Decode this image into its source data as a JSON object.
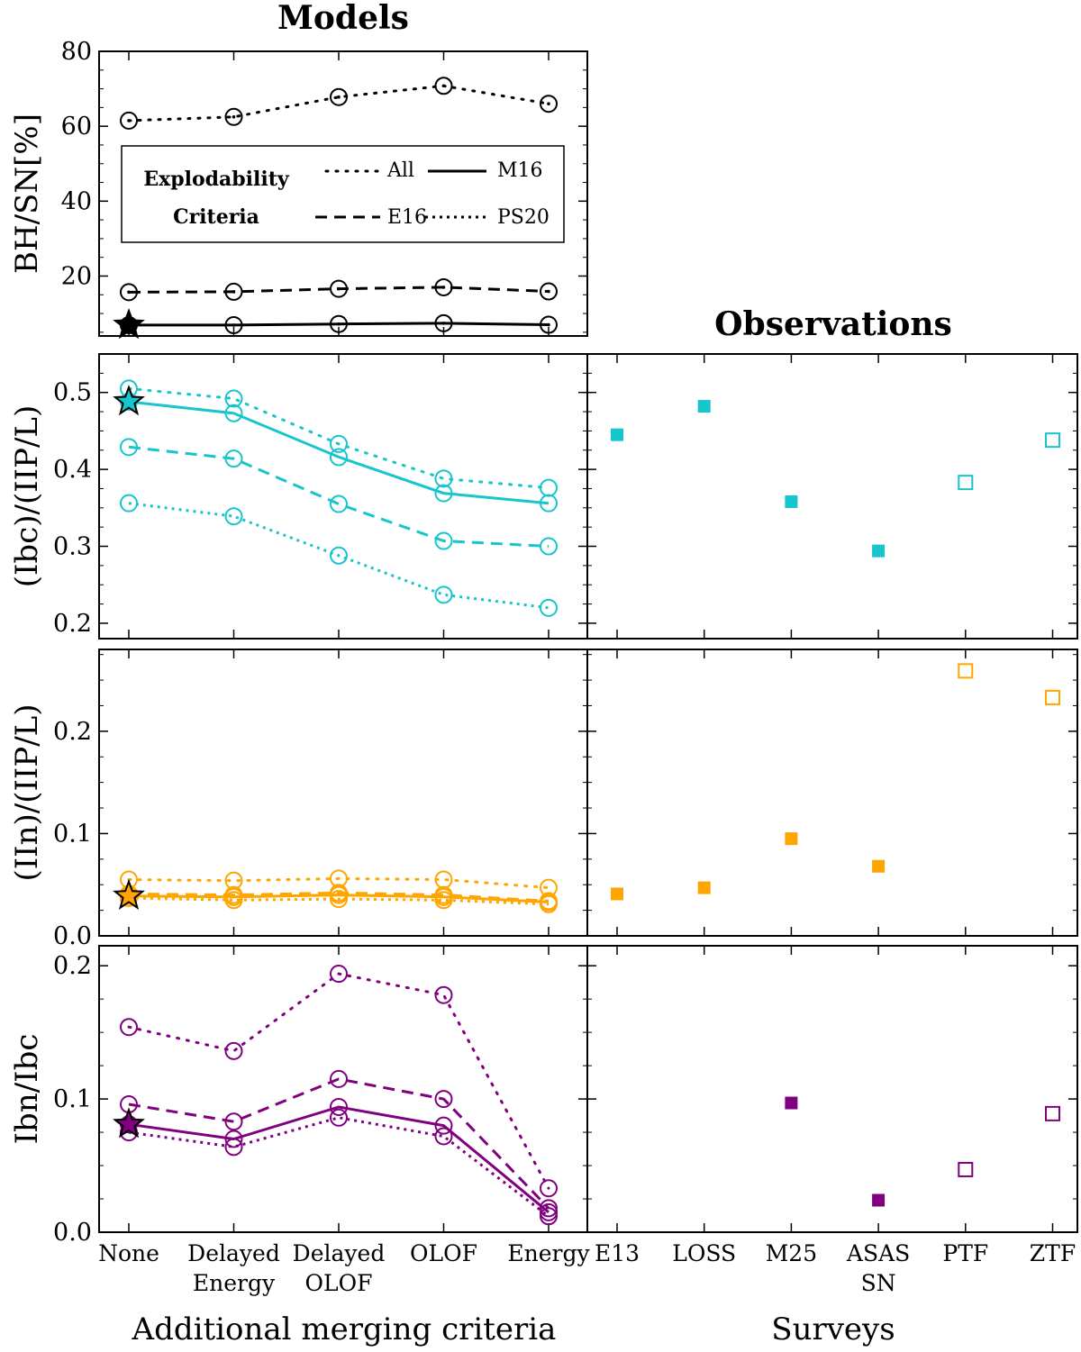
{
  "titles": {
    "left": "Models",
    "right": "Observations"
  },
  "xlabels": {
    "left": "Additional merging criteria",
    "right": "Surveys"
  },
  "criteria": [
    "None",
    "Delayed Energy",
    "Delayed OLOF",
    "OLOF",
    "Energy"
  ],
  "criteria_tick_labels": [
    [
      "None"
    ],
    [
      "Delayed",
      "Energy"
    ],
    [
      "Delayed",
      "OLOF"
    ],
    [
      "OLOF"
    ],
    [
      "Energy"
    ]
  ],
  "surveys": [
    "E13",
    "LOSS",
    "M25",
    "ASAS SN",
    "PTF",
    "ZTF"
  ],
  "survey_tick_labels": [
    [
      "E13"
    ],
    [
      "LOSS"
    ],
    [
      "M25"
    ],
    [
      "ASAS",
      "SN"
    ],
    [
      "PTF"
    ],
    [
      "ZTF"
    ]
  ],
  "legend": {
    "title_line1": "Explodability",
    "title_line2": "Criteria",
    "entries": [
      "All",
      "M16",
      "E16",
      "PS20"
    ]
  },
  "colors": {
    "black": "#000000",
    "cyan": "#17c5cc",
    "orange": "#ffa500",
    "purple": "#800080"
  },
  "chart_data": [
    {
      "type": "line",
      "panel": "bh",
      "ylabel": "BH/SN[%]",
      "ylim": [
        4,
        80
      ],
      "yticks": [
        20,
        40,
        60,
        80
      ],
      "categories": [
        "None",
        "Delayed Energy",
        "Delayed OLOF",
        "OLOF",
        "Energy"
      ],
      "series": [
        {
          "name": "All",
          "values": [
            61.5,
            62.5,
            67.8,
            70.8,
            66.0
          ]
        },
        {
          "name": "E16",
          "values": [
            15.7,
            15.8,
            16.6,
            17.0,
            15.9
          ]
        },
        {
          "name": "M16",
          "values": [
            6.9,
            6.9,
            7.2,
            7.4,
            7.0
          ]
        }
      ],
      "star": {
        "category": "None",
        "value": 6.9
      }
    },
    {
      "type": "line",
      "panel": "ibc",
      "ylabel": "(Ibc)/(IIP/L)",
      "ylim": [
        0.18,
        0.55
      ],
      "yticks": [
        0.2,
        0.3,
        0.4,
        0.5
      ],
      "categories": [
        "None",
        "Delayed Energy",
        "Delayed OLOF",
        "OLOF",
        "Energy"
      ],
      "series": [
        {
          "name": "All",
          "values": [
            0.505,
            0.492,
            0.433,
            0.388,
            0.376
          ]
        },
        {
          "name": "M16",
          "values": [
            0.488,
            0.473,
            0.416,
            0.369,
            0.356
          ]
        },
        {
          "name": "E16",
          "values": [
            0.429,
            0.414,
            0.355,
            0.307,
            0.3
          ]
        },
        {
          "name": "PS20",
          "values": [
            0.356,
            0.339,
            0.288,
            0.237,
            0.22
          ]
        }
      ],
      "star": {
        "category": "None",
        "value": 0.488
      }
    },
    {
      "type": "line",
      "panel": "iin",
      "ylabel": "(IIn)/(IIP/L)",
      "ylim": [
        0.0,
        0.28
      ],
      "yticks": [
        0.0,
        0.1,
        0.2
      ],
      "categories": [
        "None",
        "Delayed Energy",
        "Delayed OLOF",
        "OLOF",
        "Energy"
      ],
      "series": [
        {
          "name": "All",
          "values": [
            0.055,
            0.054,
            0.056,
            0.055,
            0.047
          ]
        },
        {
          "name": "E16",
          "values": [
            0.041,
            0.04,
            0.042,
            0.04,
            0.034
          ]
        },
        {
          "name": "M16",
          "values": [
            0.039,
            0.038,
            0.04,
            0.038,
            0.033
          ]
        },
        {
          "name": "PS20",
          "values": [
            0.037,
            0.035,
            0.036,
            0.035,
            0.031
          ]
        }
      ],
      "star": {
        "category": "None",
        "value": 0.039
      }
    },
    {
      "type": "line",
      "panel": "ibn",
      "ylabel": "Ibn/Ibc",
      "ylim": [
        0.0,
        0.215
      ],
      "yticks": [
        0.0,
        0.1,
        0.2
      ],
      "categories": [
        "None",
        "Delayed Energy",
        "Delayed OLOF",
        "OLOF",
        "Energy"
      ],
      "series": [
        {
          "name": "All",
          "values": [
            0.154,
            0.136,
            0.194,
            0.178,
            0.033
          ]
        },
        {
          "name": "E16",
          "values": [
            0.096,
            0.083,
            0.115,
            0.1,
            0.018
          ]
        },
        {
          "name": "M16",
          "values": [
            0.081,
            0.07,
            0.094,
            0.08,
            0.015
          ]
        },
        {
          "name": "PS20",
          "values": [
            0.075,
            0.064,
            0.086,
            0.072,
            0.012
          ]
        }
      ],
      "star": {
        "category": "None",
        "value": 0.081
      }
    },
    {
      "type": "scatter",
      "panel": "obs-ibc",
      "categories": [
        "E13",
        "LOSS",
        "M25",
        "ASAS SN",
        "PTF",
        "ZTF"
      ],
      "values": [
        0.445,
        0.482,
        0.358,
        0.294,
        0.383,
        0.438
      ],
      "filled": [
        true,
        true,
        true,
        true,
        false,
        false
      ]
    },
    {
      "type": "scatter",
      "panel": "obs-iin",
      "categories": [
        "E13",
        "LOSS",
        "M25",
        "ASAS SN",
        "PTF",
        "ZTF"
      ],
      "values": [
        0.041,
        0.047,
        0.095,
        0.068,
        0.259,
        0.233
      ],
      "filled": [
        true,
        true,
        true,
        true,
        false,
        false
      ]
    },
    {
      "type": "scatter",
      "panel": "obs-ibn",
      "categories": [
        "E13",
        "LOSS",
        "M25",
        "ASAS SN",
        "PTF",
        "ZTF"
      ],
      "values": [
        null,
        null,
        0.097,
        0.024,
        0.047,
        0.089
      ],
      "filled": [
        true,
        true,
        true,
        true,
        false,
        false
      ]
    }
  ]
}
